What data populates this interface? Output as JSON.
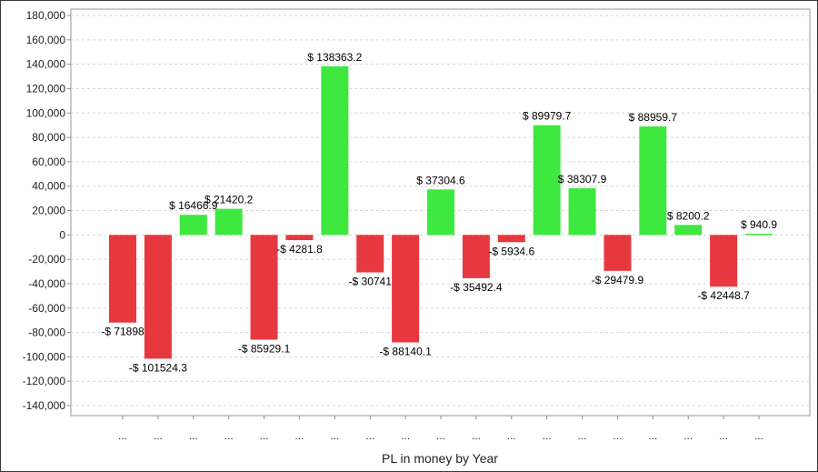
{
  "chart_data": {
    "type": "bar",
    "categories": [
      "...",
      "...",
      "...",
      "...",
      "...",
      "...",
      "...",
      "...",
      "...",
      "...",
      "...",
      "...",
      "...",
      "...",
      "...",
      "...",
      "...",
      "...",
      "..."
    ],
    "values": [
      -71898,
      -101524.3,
      16466.9,
      21420.2,
      -85929.1,
      -4281.8,
      138363.2,
      -30741,
      -88140.1,
      37304.6,
      -35492.4,
      -5934.6,
      89979.7,
      38307.9,
      -29479.9,
      88959.7,
      8200.2,
      -42448.7,
      940.9
    ],
    "data_labels": [
      "-$ 71898",
      "-$ 101524.3",
      "$ 16466.9",
      "$ 21420.2",
      "-$ 85929.1",
      "-$ 4281.8",
      "$ 138363.2",
      "-$ 30741",
      "-$ 88140.1",
      "$ 37304.6",
      "-$ 35492.4",
      "-$ 5934.6",
      "$ 89979.7",
      "$ 38307.9",
      "-$ 29479.9",
      "$ 88959.7",
      "$ 8200.2",
      "-$ 42448.7",
      "$ 940.9"
    ],
    "y_ticks": [
      "180,000",
      "160,000",
      "140,000",
      "120,000",
      "100,000",
      "80,000",
      "60,000",
      "40,000",
      "20,000",
      "0",
      "-20,000",
      "-40,000",
      "-60,000",
      "-80,000",
      "-100,000",
      "-120,000",
      "-140,000"
    ],
    "title": "",
    "xlabel": "PL in money by Year",
    "ylabel": "",
    "ylim": [
      -140000,
      180000
    ],
    "grid": true,
    "legend": "none",
    "colors": {
      "positive": "#3ee83e",
      "negative": "#e8383f",
      "grid": "#d6d6d6",
      "axis": "#888888"
    }
  }
}
